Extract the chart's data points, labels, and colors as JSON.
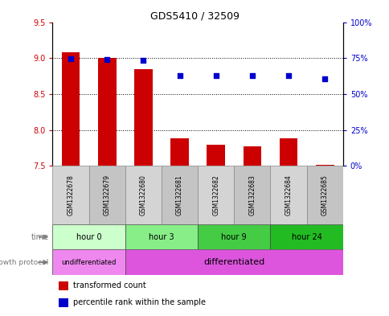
{
  "title": "GDS5410 / 32509",
  "samples": [
    "GSM1322678",
    "GSM1322679",
    "GSM1322680",
    "GSM1322681",
    "GSM1322682",
    "GSM1322683",
    "GSM1322684",
    "GSM1322685"
  ],
  "transformed_count": [
    9.08,
    9.0,
    8.85,
    7.88,
    7.79,
    7.77,
    7.88,
    7.51
  ],
  "percentile_rank": [
    74.5,
    74.0,
    73.5,
    63.0,
    63.0,
    63.0,
    63.0,
    60.5
  ],
  "ylim_left": [
    7.5,
    9.5
  ],
  "ylim_right": [
    0,
    100
  ],
  "yticks_left": [
    7.5,
    8.0,
    8.5,
    9.0,
    9.5
  ],
  "yticks_right": [
    0,
    25,
    50,
    75,
    100
  ],
  "ytick_labels_right": [
    "0%",
    "25%",
    "50%",
    "75%",
    "100%"
  ],
  "bar_color": "#cc0000",
  "dot_color": "#0000cc",
  "bar_bottom": 7.5,
  "bar_width": 0.5,
  "time_groups": [
    {
      "label": "hour 0",
      "start": 0,
      "end": 2,
      "color": "#ccffcc"
    },
    {
      "label": "hour 3",
      "start": 2,
      "end": 4,
      "color": "#88ee88"
    },
    {
      "label": "hour 9",
      "start": 4,
      "end": 6,
      "color": "#44cc44"
    },
    {
      "label": "hour 24",
      "start": 6,
      "end": 8,
      "color": "#22bb22"
    }
  ],
  "protocol_groups": [
    {
      "label": "undifferentiated",
      "start": 0,
      "end": 2,
      "color": "#ee88ee"
    },
    {
      "label": "differentiated",
      "start": 2,
      "end": 8,
      "color": "#dd55dd"
    }
  ],
  "legend_bar_label": "transformed count",
  "legend_dot_label": "percentile rank within the sample",
  "time_label": "time",
  "protocol_label": "growth protocol",
  "bg_color": "#ffffff",
  "plot_bg": "#ffffff",
  "title_color": "#000000",
  "left_tick_color": "#cc0000",
  "right_tick_color": "#0000cc",
  "sample_colors": [
    "#d4d4d4",
    "#c4c4c4"
  ]
}
